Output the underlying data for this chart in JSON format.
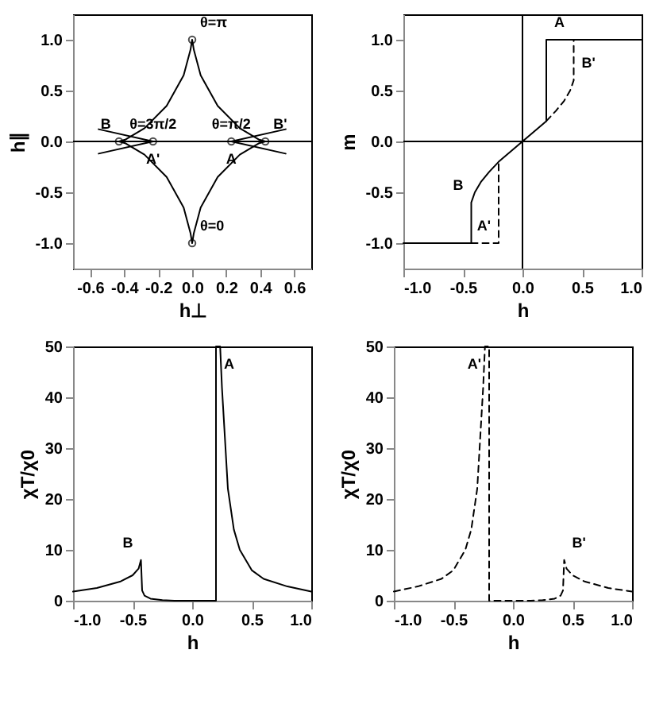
{
  "chart_data": [
    {
      "type": "line",
      "xlabel": "h⊥",
      "ylabel": "h∥",
      "xlim": [
        -0.7,
        0.7
      ],
      "ylim": [
        -1.25,
        1.25
      ],
      "xticks": [
        -0.6,
        -0.4,
        -0.2,
        {
          "value": 0,
          "label": "0.0"
        },
        0.2,
        0.4,
        0.6
      ],
      "yticks": [
        {
          "value": -1,
          "label": "-1.0"
        },
        -0.5,
        {
          "value": 0,
          "label": "0.0"
        },
        0.5,
        {
          "value": 1,
          "label": "1.0"
        }
      ],
      "series": [
        {
          "type": "line",
          "color": "#000000",
          "line_style": "solid",
          "x": [
            0.43,
            0.39,
            0.28,
            0.15,
            0.05,
            0.01,
            0,
            -0.01,
            -0.05,
            -0.15,
            -0.28,
            -0.39,
            -0.43
          ],
          "values": [
            0,
            0.02,
            0.13,
            0.35,
            0.65,
            0.9,
            1,
            0.9,
            0.65,
            0.35,
            0.13,
            0.02,
            0
          ]
        },
        {
          "type": "line",
          "color": "#000000",
          "line_style": "solid",
          "x": [
            -0.43,
            -0.39,
            -0.28,
            -0.15,
            -0.05,
            -0.01,
            0,
            0.01,
            0.05,
            0.15,
            0.28,
            0.39,
            0.43
          ],
          "values": [
            0,
            -0.02,
            -0.13,
            -0.35,
            -0.65,
            -0.9,
            -1,
            -0.9,
            -0.65,
            -0.35,
            -0.13,
            -0.02,
            0
          ]
        },
        {
          "type": "line",
          "color": "#000000",
          "line_style": "solid",
          "x": [
            -0.55,
            -0.23
          ],
          "values": [
            0.12,
            0
          ]
        },
        {
          "type": "line",
          "color": "#000000",
          "line_style": "solid",
          "x": [
            -0.55,
            -0.23
          ],
          "values": [
            -0.12,
            0
          ]
        },
        {
          "type": "line",
          "color": "#000000",
          "line_style": "solid",
          "x": [
            0.23,
            0.55
          ],
          "values": [
            0,
            0.12
          ]
        },
        {
          "type": "line",
          "color": "#000000",
          "line_style": "solid",
          "x": [
            0.23,
            0.55
          ],
          "values": [
            0,
            -0.12
          ]
        },
        {
          "type": "scatter",
          "color": "#000000",
          "marker": "circle",
          "x": [
            0.23,
            -0.23,
            -0.43,
            0.43,
            0,
            0
          ],
          "values": [
            0,
            0,
            0,
            0,
            1,
            -1
          ]
        }
      ],
      "ref_lines": [
        {
          "axis": "y",
          "value": 0,
          "label": null,
          "color": "#000000"
        }
      ],
      "annotations": [
        {
          "text": "θ=π",
          "x": 0,
          "y": 1
        },
        {
          "text": "θ=0",
          "x": 0,
          "y": -1
        },
        {
          "text": "θ=π/2",
          "x": 0.23,
          "y": 0
        },
        {
          "text": "θ=3π/2",
          "x": -0.23,
          "y": 0
        },
        {
          "text": "A",
          "x": 0.23,
          "y": 0
        },
        {
          "text": "A'",
          "x": -0.23,
          "y": 0
        },
        {
          "text": "B",
          "x": -0.43,
          "y": 0
        },
        {
          "text": "B'",
          "x": 0.43,
          "y": 0
        }
      ]
    },
    {
      "type": "line",
      "xlabel": "h",
      "ylabel": "m",
      "xlim": [
        -1,
        1
      ],
      "ylim": [
        -1.25,
        1.25
      ],
      "xticks": [
        {
          "value": -1,
          "label": "-1.0"
        },
        -0.5,
        {
          "value": 0,
          "label": "0.0"
        },
        0.5,
        {
          "value": 1,
          "label": "1.0"
        }
      ],
      "yticks": [
        {
          "value": -1,
          "label": "-1.0"
        },
        -0.5,
        {
          "value": 0,
          "label": "0.0"
        },
        0.5,
        {
          "value": 1,
          "label": "1.0"
        }
      ],
      "series": [
        {
          "type": "line",
          "color": "#000000",
          "line_style": "solid",
          "x": [
            -1,
            -0.43,
            -0.43,
            -0.4,
            -0.35,
            -0.28,
            -0.2,
            0,
            0.2,
            0.2,
            1
          ],
          "values": [
            -1,
            -1,
            -0.6,
            -0.5,
            -0.4,
            -0.3,
            -0.2,
            0,
            0.2,
            1,
            1
          ]
        },
        {
          "type": "line",
          "color": "#000000",
          "line_style": "dashed",
          "x": [
            -0.43,
            -0.2,
            -0.2
          ],
          "values": [
            -1,
            -1,
            -0.2
          ]
        },
        {
          "type": "line",
          "color": "#000000",
          "line_style": "dashed",
          "x": [
            0.2,
            0.28,
            0.35,
            0.4,
            0.43,
            0.43
          ],
          "values": [
            0.2,
            0.3,
            0.4,
            0.5,
            0.6,
            1
          ]
        }
      ],
      "ref_lines": [
        {
          "axis": "x",
          "value": 0,
          "label": null,
          "color": "#000000"
        },
        {
          "axis": "y",
          "value": 0,
          "label": null,
          "color": "#000000"
        }
      ],
      "annotations": [
        {
          "text": "A",
          "x": 0.2,
          "y": 1
        },
        {
          "text": "B",
          "x": -0.43,
          "y": -0.6
        },
        {
          "text": "A'",
          "x": -0.2,
          "y": -1
        },
        {
          "text": "B'",
          "x": 0.43,
          "y": 0.6
        }
      ]
    },
    {
      "type": "line",
      "xlabel": "h",
      "ylabel": "χT/χ0",
      "xlim": [
        -1,
        1
      ],
      "ylim": [
        0,
        50
      ],
      "xticks": [
        {
          "value": -1,
          "label": "-1.0"
        },
        -0.5,
        {
          "value": 0,
          "label": "0.0"
        },
        0.5,
        {
          "value": 1,
          "label": "1.0"
        }
      ],
      "yticks": [
        0,
        10,
        20,
        30,
        40,
        50
      ],
      "series": [
        {
          "type": "line",
          "color": "#000000",
          "line_style": "solid",
          "x": [
            -1,
            -0.8,
            -0.6,
            -0.5,
            -0.45,
            -0.43,
            -0.42,
            -0.4,
            -0.35,
            -0.25,
            -0.15,
            0.2,
            0.2,
            0.235,
            0.25,
            0.3,
            0.35,
            0.4,
            0.5,
            0.6,
            0.8,
            1
          ],
          "values": [
            1.8,
            2.5,
            3.8,
            5,
            6.3,
            8,
            2,
            1,
            0.4,
            0.1,
            0,
            0,
            50,
            50,
            42,
            22,
            14,
            10,
            6,
            4.3,
            2.8,
            1.8
          ]
        }
      ],
      "annotations": [
        {
          "text": "A",
          "x": 0.2,
          "y": 50
        },
        {
          "text": "B",
          "x": -0.43,
          "y": 8
        }
      ]
    },
    {
      "type": "line",
      "xlabel": "h",
      "ylabel": "χT/χ0",
      "xlim": [
        -1,
        1
      ],
      "ylim": [
        0,
        50
      ],
      "xticks": [
        {
          "value": -1,
          "label": "-1.0"
        },
        -0.5,
        {
          "value": 0,
          "label": "0.0"
        },
        0.5,
        {
          "value": 1,
          "label": "1.0"
        }
      ],
      "yticks": [
        0,
        10,
        20,
        30,
        40,
        50
      ],
      "series": [
        {
          "type": "line",
          "color": "#000000",
          "line_style": "dashed",
          "x": [
            -1,
            -0.8,
            -0.6,
            -0.5,
            -0.4,
            -0.35,
            -0.3,
            -0.25,
            -0.235,
            -0.2,
            -0.2,
            0.15,
            0.25,
            0.35,
            0.4,
            0.42,
            0.43,
            0.45,
            0.5,
            0.6,
            0.8,
            1
          ],
          "values": [
            1.8,
            2.8,
            4.3,
            6,
            10,
            14,
            22,
            42,
            50,
            50,
            0,
            0,
            0.1,
            0.4,
            1,
            2,
            8,
            6.3,
            5,
            3.8,
            2.5,
            1.8
          ]
        }
      ],
      "annotations": [
        {
          "text": "A'",
          "x": -0.2,
          "y": 50
        },
        {
          "text": "B'",
          "x": 0.43,
          "y": 8
        }
      ]
    }
  ]
}
